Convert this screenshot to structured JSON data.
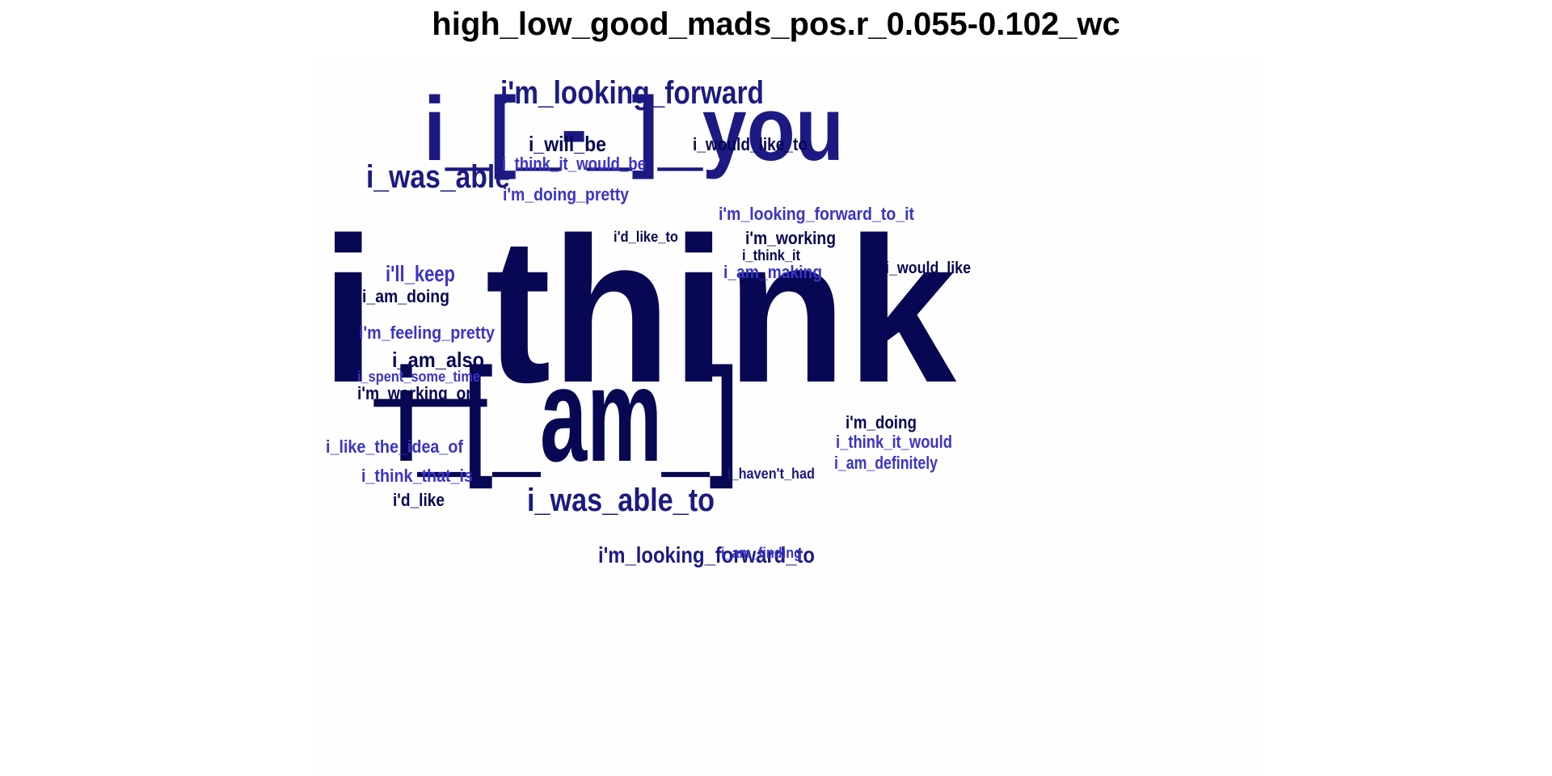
{
  "title": "high_low_good_mads_pos.r_0.055-0.102_wc",
  "colors": {
    "dark": "#070754",
    "mid": "#1c1a82",
    "light": "#3b34c8"
  },
  "words": [
    {
      "text": "i_think"
    },
    {
      "text": "i_[_-_]_you"
    },
    {
      "text": "i_[_am_]"
    },
    {
      "text": "i'm_looking_forward"
    },
    {
      "text": "i_was_able"
    },
    {
      "text": "i_was_able_to"
    },
    {
      "text": "i'm_looking_forward_to"
    },
    {
      "text": "i_will_be"
    },
    {
      "text": "i_think_it_would_be"
    },
    {
      "text": "i'm_doing_pretty"
    },
    {
      "text": "i_would_like_to"
    },
    {
      "text": "i'm_looking_forward_to_it"
    },
    {
      "text": "i'd_like_to"
    },
    {
      "text": "i'm_working"
    },
    {
      "text": "i_think_it"
    },
    {
      "text": "i_am_making"
    },
    {
      "text": "i_would_like"
    },
    {
      "text": "i'll_keep"
    },
    {
      "text": "i_am_doing"
    },
    {
      "text": "i'm_feeling_pretty"
    },
    {
      "text": "i_am_also"
    },
    {
      "text": "i_spent_some_time"
    },
    {
      "text": "i'm_working_on"
    },
    {
      "text": "i_like_the_idea_of"
    },
    {
      "text": "i_think_that_is"
    },
    {
      "text": "i'd_like"
    },
    {
      "text": "i'm_doing"
    },
    {
      "text": "i_think_it_would"
    },
    {
      "text": "i_am_definitely"
    },
    {
      "text": "i_haven't_had"
    },
    {
      "text": "i_am_finding"
    }
  ]
}
